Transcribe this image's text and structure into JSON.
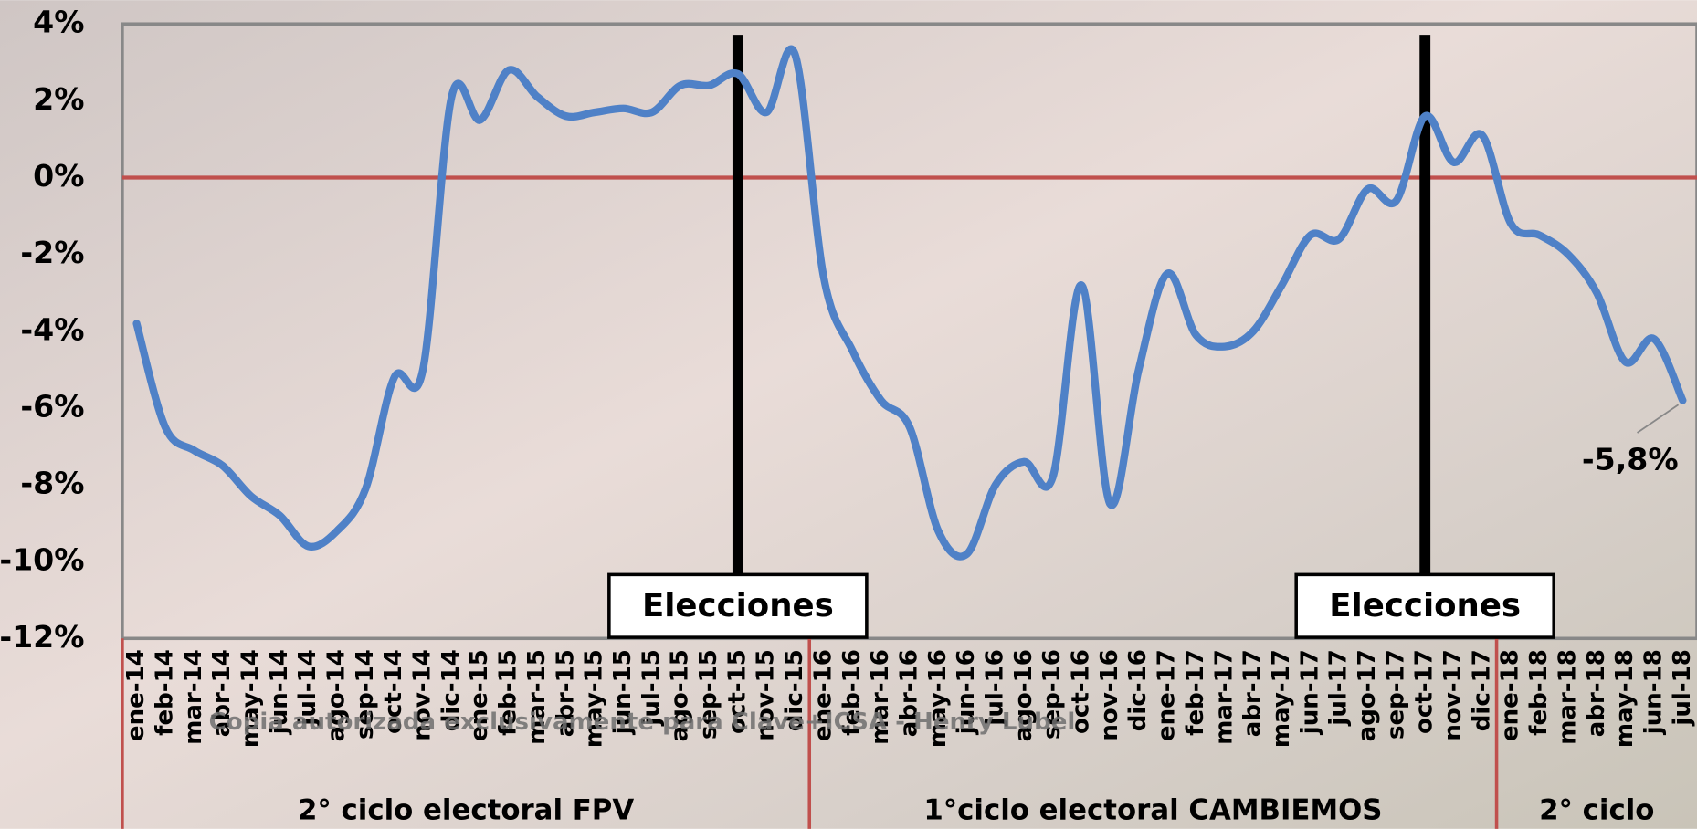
{
  "chart_data": {
    "type": "line",
    "categories": [
      "ene-14",
      "feb-14",
      "mar-14",
      "abr-14",
      "may-14",
      "jun-14",
      "jul-14",
      "ago-14",
      "sep-14",
      "oct-14",
      "nov-14",
      "dic-14",
      "ene-15",
      "feb-15",
      "mar-15",
      "abr-15",
      "may-15",
      "jun-15",
      "jul-15",
      "ago-15",
      "sep-15",
      "oct-15",
      "nov-15",
      "dic-15",
      "ene-16",
      "feb-16",
      "mar-16",
      "abr-16",
      "may-16",
      "jun-16",
      "jul-16",
      "ago-16",
      "sep-16",
      "oct-16",
      "nov-16",
      "dic-16",
      "ene-17",
      "feb-17",
      "mar-17",
      "abr-17",
      "may-17",
      "jun-17",
      "jul-17",
      "ago-17",
      "sep-17",
      "oct-17",
      "nov-17",
      "dic-17",
      "ene-18",
      "feb-18",
      "mar-18",
      "abr-18",
      "may-18",
      "jun-18",
      "jul-18"
    ],
    "values": [
      -3.8,
      -6.5,
      -7.1,
      -7.5,
      -8.3,
      -8.8,
      -9.6,
      -9.2,
      -8.1,
      -5.2,
      -5.0,
      2.1,
      1.5,
      2.8,
      2.1,
      1.6,
      1.7,
      1.8,
      1.7,
      2.4,
      2.4,
      2.7,
      1.7,
      3.2,
      -2.6,
      -4.5,
      -5.8,
      -6.5,
      -9.2,
      -9.8,
      -8.0,
      -7.4,
      -7.8,
      -2.8,
      -8.5,
      -5.0,
      -2.5,
      -4.1,
      -4.4,
      -4.0,
      -2.8,
      -1.5,
      -1.6,
      -0.3,
      -0.6,
      1.6,
      0.4,
      1.1,
      -1.2,
      -1.5,
      -2.0,
      -3.0,
      -4.8,
      -4.2,
      -5.8
    ],
    "value_labels": [
      null,
      null,
      null,
      null,
      null,
      null,
      null,
      null,
      null,
      null,
      null,
      null,
      null,
      null,
      null,
      null,
      null,
      null,
      null,
      null,
      null,
      null,
      null,
      null,
      null,
      null,
      null,
      null,
      null,
      null,
      null,
      null,
      null,
      null,
      null,
      null,
      null,
      null,
      null,
      null,
      null,
      null,
      null,
      null,
      null,
      null,
      null,
      null,
      null,
      null,
      null,
      null,
      null,
      null,
      "-5,8%"
    ],
    "color": "#4f81c7",
    "ylim": [
      -12,
      4
    ],
    "yticks": [
      {
        "value": -12,
        "label": "-12%"
      },
      {
        "value": -10,
        "label": "-10%"
      },
      {
        "value": -8,
        "label": "-8%"
      },
      {
        "value": -6,
        "label": "-6%"
      },
      {
        "value": -4,
        "label": "-4%"
      },
      {
        "value": -2,
        "label": "-2%"
      },
      {
        "value": 0,
        "label": "0%"
      },
      {
        "value": 2,
        "label": "2%"
      },
      {
        "value": 4,
        "label": "4%"
      }
    ],
    "zero_line": true,
    "zero_line_color": "#c0504d",
    "annotations": [
      {
        "text": "Elecciones",
        "category": "oct-15"
      },
      {
        "text": "Elecciones",
        "category": "oct-17"
      }
    ],
    "periods": [
      {
        "label": "2° ciclo electoral FPV",
        "start": "ene-14",
        "end": "dic-15"
      },
      {
        "label": "1°ciclo electoral CAMBIEMOS",
        "start": "ene-16",
        "end": "dic-17"
      },
      {
        "label": "2° ciclo",
        "start": "ene-18",
        "end": "jul-18"
      }
    ],
    "watermark": "Copia autorizada exclusivamente para Clave+ICSA - Henry Lubel"
  }
}
